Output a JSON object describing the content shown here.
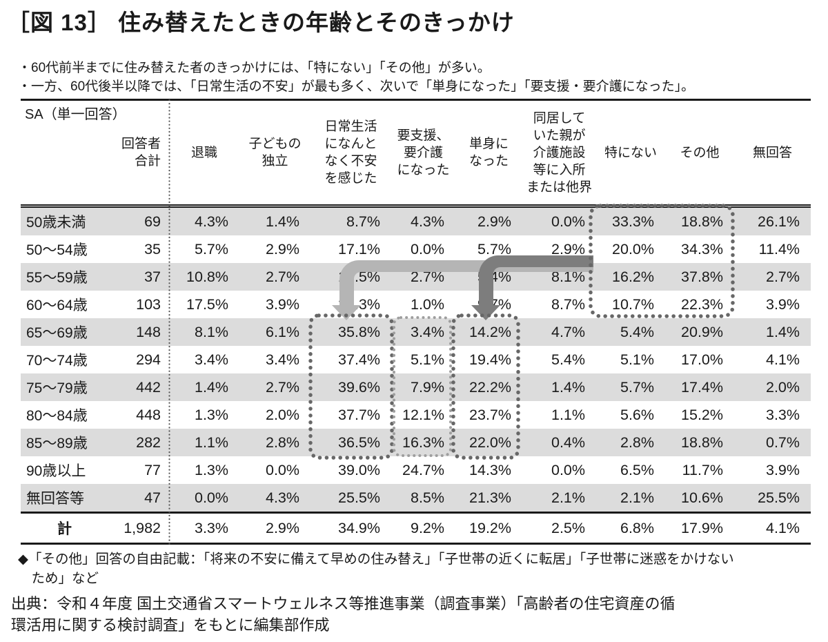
{
  "title": "［図 13］ 住み替えたときの年齢とそのきっかけ",
  "bullets": [
    "・60代前半までに住み替えた者のきっかけには、「特にない」「その他」が多い。",
    "・一方、60代後半以降では、「日常生活の不安」が最も多く、次いで「単身になった」「要支援・要介護になった」。"
  ],
  "table": {
    "corner_label": "SA（単一回答）",
    "columns": [
      "回答者\n合計",
      "退職",
      "子どもの\n独立",
      "日常生活\nになんと\nなく不安\nを感じた",
      "要支援、\n要介護\nになった",
      "単身に\nなった",
      "同居して\nいた親が\n介護施設\n等に入所\nまたは他界",
      "特にない",
      "その他",
      "無回答"
    ],
    "rows": [
      {
        "label": "50歳未満",
        "total": "69",
        "values": [
          "4.3%",
          "1.4%",
          "8.7%",
          "4.3%",
          "2.9%",
          "0.0%",
          "33.3%",
          "18.8%",
          "26.1%"
        ]
      },
      {
        "label": "50〜54歳",
        "total": "35",
        "values": [
          "5.7%",
          "2.9%",
          "17.1%",
          "0.0%",
          "5.7%",
          "2.9%",
          "20.0%",
          "34.3%",
          "11.4%"
        ]
      },
      {
        "label": "55〜59歳",
        "total": "37",
        "values": [
          "10.8%",
          "2.7%",
          "13.5%",
          "2.7%",
          "5.4%",
          "8.1%",
          "16.2%",
          "37.8%",
          "2.7%"
        ]
      },
      {
        "label": "60〜64歳",
        "total": "103",
        "values": [
          "17.5%",
          "3.9%",
          "22.3%",
          "1.0%",
          "9.7%",
          "8.7%",
          "10.7%",
          "22.3%",
          "3.9%"
        ]
      },
      {
        "label": "65〜69歳",
        "total": "148",
        "values": [
          "8.1%",
          "6.1%",
          "35.8%",
          "3.4%",
          "14.2%",
          "4.7%",
          "5.4%",
          "20.9%",
          "1.4%"
        ]
      },
      {
        "label": "70〜74歳",
        "total": "294",
        "values": [
          "3.4%",
          "3.4%",
          "37.4%",
          "5.1%",
          "19.4%",
          "5.4%",
          "5.1%",
          "17.0%",
          "4.1%"
        ]
      },
      {
        "label": "75〜79歳",
        "total": "442",
        "values": [
          "1.4%",
          "2.7%",
          "39.6%",
          "7.9%",
          "22.2%",
          "1.4%",
          "5.7%",
          "17.4%",
          "2.0%"
        ]
      },
      {
        "label": "80〜84歳",
        "total": "448",
        "values": [
          "1.3%",
          "2.0%",
          "37.7%",
          "12.1%",
          "23.7%",
          "1.1%",
          "5.6%",
          "15.2%",
          "3.3%"
        ]
      },
      {
        "label": "85〜89歳",
        "total": "282",
        "values": [
          "1.1%",
          "2.8%",
          "36.5%",
          "16.3%",
          "22.0%",
          "0.4%",
          "2.8%",
          "18.8%",
          "0.7%"
        ]
      },
      {
        "label": "90歳以上",
        "total": "77",
        "values": [
          "1.3%",
          "0.0%",
          "39.0%",
          "24.7%",
          "14.3%",
          "0.0%",
          "6.5%",
          "11.7%",
          "3.9%"
        ]
      },
      {
        "label": "無回答等",
        "total": "47",
        "values": [
          "0.0%",
          "4.3%",
          "25.5%",
          "8.5%",
          "21.3%",
          "2.1%",
          "2.1%",
          "10.6%",
          "25.5%"
        ]
      }
    ],
    "total_row": {
      "label": "計",
      "total": "1,982",
      "values": [
        "3.3%",
        "2.9%",
        "34.9%",
        "9.2%",
        "19.2%",
        "2.5%",
        "6.8%",
        "17.9%",
        "4.1%"
      ]
    }
  },
  "colors": {
    "row_stripe": "#dcdcdc",
    "rule": "#1a1a1a",
    "dots_dark": "#676767",
    "dots_light": "#9e9e9e",
    "arrow_light": "#b5b5b5",
    "arrow_dark": "#7d7d7d",
    "separator_dots": "#555555"
  },
  "note": "◆「その他」回答の自由記載：「将来の不安に備えて早めの住み替え」「子世帯の近くに転居」「子世帯に迷惑をかけない\n　ため」など",
  "source": "出典：令和４年度 国土交通省スマートウェルネス等推進事業（調査事業）「高齢者の住宅資産の循\n環活用に関する検討調査」をもとに編集部作成"
}
